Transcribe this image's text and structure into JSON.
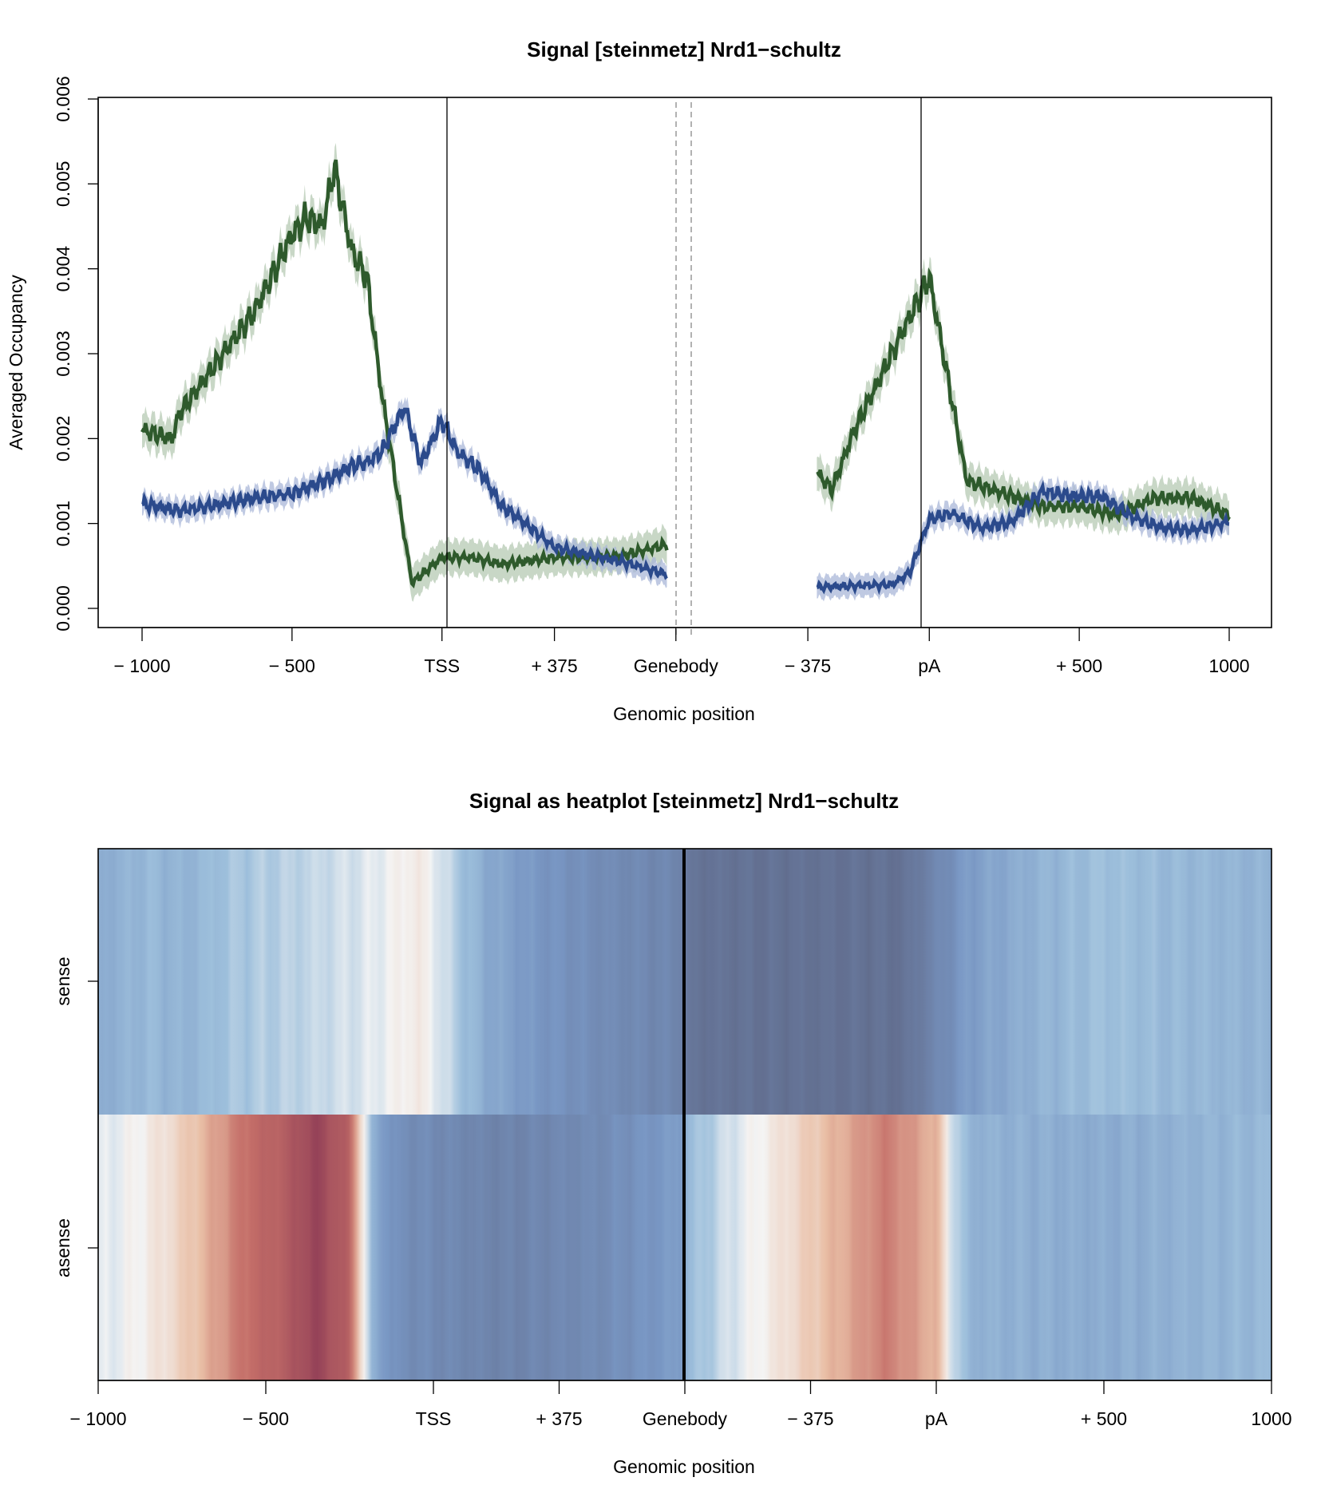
{
  "colors": {
    "sense_line": "#2b4a8c",
    "sense_band": "#a9b7d8",
    "asense_line": "#2e5a2c",
    "asense_band": "#b5c9b3",
    "heat_low": "#5e6786",
    "heat_mid": "#f4f4f4",
    "heat_high": "#8c3a55"
  },
  "chart_data": [
    {
      "type": "line",
      "title": "Signal [steinmetz] Nrd1−schultz",
      "xlabel": "Genomic position",
      "ylabel": "Averaged Occupancy",
      "ylim": [
        0,
        0.006
      ],
      "yticks": [
        "0.000",
        "0.001",
        "0.002",
        "0.003",
        "0.004",
        "0.005",
        "0.006"
      ],
      "x_tick_labels": [
        "− 1000",
        "− 500",
        "TSS",
        "+ 375",
        "Genebody",
        "− 375",
        "pA",
        "+ 500",
        "1000"
      ],
      "x_tick_positions": [
        0,
        0.5,
        1.0,
        1.375,
        1.78,
        2.22,
        2.625,
        3.125,
        3.625
      ],
      "segments": [
        "upstream -1000..TSS",
        "TSS..+375",
        "genebody",
        "-375..pA",
        "pA..+1000"
      ],
      "reference_lines": [
        "TSS",
        "pA"
      ],
      "grid": false,
      "series": [
        {
          "name": "sense",
          "x": [
            0,
            0.125,
            0.25,
            0.375,
            0.5,
            0.625,
            0.7,
            0.75,
            0.8,
            0.875,
            0.93,
            1.0,
            1.05,
            1.125,
            1.2,
            1.25,
            1.375,
            1.5,
            1.6,
            1.75,
            2.25,
            2.4,
            2.5,
            2.56,
            2.625,
            2.7,
            2.8,
            2.9,
            3.0,
            3.1,
            3.2,
            3.3,
            3.4,
            3.5,
            3.625
          ],
          "y": [
            0.00123,
            0.00115,
            0.00122,
            0.0013,
            0.00135,
            0.00153,
            0.00168,
            0.00172,
            0.00185,
            0.00238,
            0.0017,
            0.00222,
            0.00185,
            0.00163,
            0.0012,
            0.00108,
            0.00072,
            0.00062,
            0.00055,
            0.0004,
            0.00025,
            0.00027,
            0.00028,
            0.00042,
            0.00105,
            0.00112,
            0.00095,
            0.00102,
            0.00138,
            0.00132,
            0.00132,
            0.00108,
            0.00095,
            0.00092,
            0.00102
          ],
          "band": 0.00013
        },
        {
          "name": "asense",
          "x": [
            0,
            0.1,
            0.125,
            0.25,
            0.375,
            0.5,
            0.55,
            0.6,
            0.625,
            0.64,
            0.7,
            0.75,
            0.8,
            0.9,
            0.95,
            1.0,
            1.1,
            1.2,
            1.375,
            1.5,
            1.6,
            1.75,
            2.25,
            2.3,
            2.375,
            2.5,
            2.625,
            2.75,
            3.0,
            3.125,
            3.25,
            3.375,
            3.5,
            3.625
          ],
          "y": [
            0.0021,
            0.002,
            0.0023,
            0.0029,
            0.0035,
            0.0044,
            0.0046,
            0.0045,
            0.0049,
            0.0052,
            0.0042,
            0.0039,
            0.0025,
            0.0003,
            0.00045,
            0.0006,
            0.0006,
            0.00052,
            0.0006,
            0.0006,
            0.00062,
            0.00075,
            0.0016,
            0.0014,
            0.0021,
            0.003,
            0.0039,
            0.0015,
            0.0012,
            0.0012,
            0.0011,
            0.0013,
            0.0013,
            0.0011
          ],
          "band": 0.0002
        }
      ]
    },
    {
      "type": "heatmap",
      "title": "Signal as heatplot [steinmetz] Nrd1−schultz",
      "xlabel": "Genomic position",
      "rows": [
        "sense",
        "asense"
      ],
      "x_tick_labels": [
        "− 1000",
        "− 500",
        "TSS",
        "+ 375",
        "Genebody",
        "− 375",
        "pA",
        "+ 500",
        "1000"
      ],
      "x_tick_positions": [
        0,
        0.5,
        1.0,
        1.375,
        1.75,
        2.125,
        2.5,
        3.0,
        3.5
      ],
      "divider_at": 1.75,
      "value_range": [
        0,
        1
      ],
      "values": {
        "sense": {
          "x": [
            0,
            0.15,
            0.25,
            0.4,
            0.6,
            0.8,
            0.9,
            0.95,
            1.0,
            1.05,
            1.15,
            1.3,
            1.5,
            1.74,
            1.76,
            2.0,
            2.2,
            2.4,
            2.6,
            2.8,
            3.0,
            3.2,
            3.5
          ],
          "v": [
            0.28,
            0.32,
            0.3,
            0.35,
            0.38,
            0.42,
            0.46,
            0.48,
            0.44,
            0.38,
            0.28,
            0.22,
            0.17,
            0.14,
            0.06,
            0.05,
            0.05,
            0.05,
            0.24,
            0.3,
            0.34,
            0.32,
            0.3
          ]
        },
        "asense": {
          "x": [
            0,
            0.1,
            0.2,
            0.3,
            0.45,
            0.55,
            0.65,
            0.75,
            0.78,
            0.82,
            0.9,
            1.2,
            1.5,
            1.74,
            1.76,
            1.9,
            2.05,
            2.2,
            2.35,
            2.5,
            2.55,
            2.6,
            3.0,
            3.5
          ],
          "v": [
            0.42,
            0.45,
            0.5,
            0.58,
            0.76,
            0.82,
            0.95,
            0.8,
            0.55,
            0.28,
            0.18,
            0.13,
            0.17,
            0.24,
            0.32,
            0.42,
            0.5,
            0.6,
            0.72,
            0.6,
            0.4,
            0.3,
            0.28,
            0.32
          ]
        }
      }
    }
  ]
}
